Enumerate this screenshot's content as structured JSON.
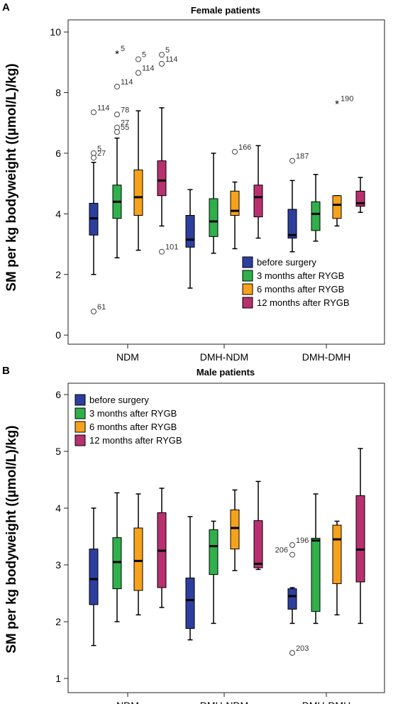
{
  "figure": {
    "panel_a_label": "A",
    "panel_b_label": "B"
  },
  "chart_data": [
    {
      "type": "boxplot",
      "title": "Female patients",
      "ylabel": "SM per kg bodyweight ((µmol/L)/kg)",
      "xlabel": "",
      "ylim": [
        -0.3,
        10.4
      ],
      "yticks": [
        0,
        2,
        4,
        6,
        8,
        10
      ],
      "categories": [
        "NDM",
        "DMH-NDM",
        "DMH-DMH"
      ],
      "grid": false,
      "legend_position": "bottom-right",
      "series": [
        {
          "name": "before surgery",
          "color": "#2d3f9e",
          "boxes": [
            {
              "whisker_low": 2.0,
              "q1": 3.3,
              "median": 3.85,
              "q3": 4.35,
              "whisker_high": 5.7
            },
            {
              "whisker_low": 1.55,
              "q1": 2.9,
              "median": 3.15,
              "q3": 3.95,
              "whisker_high": 4.8
            },
            {
              "whisker_low": 2.75,
              "q1": 3.2,
              "median": 3.3,
              "q3": 4.15,
              "whisker_high": 5.1
            }
          ]
        },
        {
          "name": "3 months after RYGB",
          "color": "#2fb04a",
          "boxes": [
            {
              "whisker_low": 2.55,
              "q1": 3.85,
              "median": 4.4,
              "q3": 4.95,
              "whisker_high": 6.5
            },
            {
              "whisker_low": 2.7,
              "q1": 3.25,
              "median": 3.75,
              "q3": 4.5,
              "whisker_high": 6.0
            },
            {
              "whisker_low": 3.1,
              "q1": 3.45,
              "median": 4.0,
              "q3": 4.4,
              "whisker_high": 5.3
            }
          ]
        },
        {
          "name": "6 months after RYGB",
          "color": "#f7a21b",
          "boxes": [
            {
              "whisker_low": 2.8,
              "q1": 3.95,
              "median": 4.55,
              "q3": 5.45,
              "whisker_high": 7.4
            },
            {
              "whisker_low": 2.85,
              "q1": 3.95,
              "median": 4.1,
              "q3": 4.75,
              "whisker_high": 5.05
            },
            {
              "whisker_low": 3.6,
              "q1": 3.85,
              "median": 4.3,
              "q3": 4.6,
              "whisker_high": 4.6
            }
          ]
        },
        {
          "name": "12 months after RYGB",
          "color": "#b8306f",
          "boxes": [
            {
              "whisker_low": 3.6,
              "q1": 4.6,
              "median": 5.1,
              "q3": 5.75,
              "whisker_high": 7.5
            },
            {
              "whisker_low": 3.2,
              "q1": 3.9,
              "median": 4.55,
              "q3": 4.95,
              "whisker_high": 6.25
            },
            {
              "whisker_low": 4.05,
              "q1": 4.25,
              "median": 4.35,
              "q3": 4.75,
              "whisker_high": 5.2
            }
          ]
        }
      ],
      "outliers": [
        {
          "category": 0,
          "series": 0,
          "y": 7.35,
          "label": "114",
          "marker": "circle"
        },
        {
          "category": 0,
          "series": 0,
          "y": 6.0,
          "label": "5",
          "marker": "circle"
        },
        {
          "category": 0,
          "series": 0,
          "y": 5.85,
          "label": "27",
          "marker": "circle"
        },
        {
          "category": 0,
          "series": 0,
          "y": 0.78,
          "label": "61",
          "marker": "circle"
        },
        {
          "category": 0,
          "series": 1,
          "y": 9.3,
          "label": "5",
          "marker": "star"
        },
        {
          "category": 0,
          "series": 1,
          "y": 8.2,
          "label": "114",
          "marker": "circle"
        },
        {
          "category": 0,
          "series": 1,
          "y": 7.28,
          "label": "78",
          "marker": "circle"
        },
        {
          "category": 0,
          "series": 1,
          "y": 6.85,
          "label": "27",
          "marker": "circle"
        },
        {
          "category": 0,
          "series": 1,
          "y": 6.7,
          "label": "55",
          "marker": "circle"
        },
        {
          "category": 0,
          "series": 2,
          "y": 9.1,
          "label": "5",
          "marker": "circle"
        },
        {
          "category": 0,
          "series": 2,
          "y": 8.65,
          "label": "114",
          "marker": "circle"
        },
        {
          "category": 0,
          "series": 3,
          "y": 9.25,
          "label": "5",
          "marker": "circle"
        },
        {
          "category": 0,
          "series": 3,
          "y": 8.95,
          "label": "114",
          "marker": "circle"
        },
        {
          "category": 0,
          "series": 3,
          "y": 2.75,
          "label": "101",
          "marker": "circle"
        },
        {
          "category": 1,
          "series": 2,
          "y": 6.05,
          "label": "166",
          "marker": "circle"
        },
        {
          "category": 2,
          "series": 0,
          "y": 5.75,
          "label": "187",
          "marker": "circle"
        },
        {
          "category": 2,
          "series": 2,
          "y": 7.65,
          "label": "190",
          "marker": "star"
        }
      ]
    },
    {
      "type": "boxplot",
      "title": "Male patients",
      "ylabel": "SM per kg bodyweight ((µmol/L)/kg)",
      "xlabel": "",
      "ylim": [
        0.75,
        6.2
      ],
      "yticks": [
        1,
        2,
        3,
        4,
        5,
        6
      ],
      "categories": [
        "NDM",
        "DMH-NDM",
        "DMH-DMH"
      ],
      "grid": false,
      "legend_position": "top-left",
      "series": [
        {
          "name": "before surgery",
          "color": "#2d3f9e",
          "boxes": [
            {
              "whisker_low": 1.58,
              "q1": 2.3,
              "median": 2.75,
              "q3": 3.28,
              "whisker_high": 4.0
            },
            {
              "whisker_low": 1.68,
              "q1": 1.88,
              "median": 2.38,
              "q3": 2.77,
              "whisker_high": 3.85
            },
            {
              "whisker_low": 1.97,
              "q1": 2.22,
              "median": 2.45,
              "q3": 2.58,
              "whisker_high": 2.6
            }
          ]
        },
        {
          "name": "3 months after RYGB",
          "color": "#2fb04a",
          "boxes": [
            {
              "whisker_low": 2.0,
              "q1": 2.58,
              "median": 3.05,
              "q3": 3.48,
              "whisker_high": 4.27
            },
            {
              "whisker_low": 1.97,
              "q1": 2.83,
              "median": 3.33,
              "q3": 3.62,
              "whisker_high": 3.77
            },
            {
              "whisker_low": 1.97,
              "q1": 2.18,
              "median": 3.43,
              "q3": 3.47,
              "whisker_high": 4.25
            }
          ]
        },
        {
          "name": "6 months after RYGB",
          "color": "#f7a21b",
          "boxes": [
            {
              "whisker_low": 2.12,
              "q1": 2.55,
              "median": 3.07,
              "q3": 3.65,
              "whisker_high": 4.25
            },
            {
              "whisker_low": 2.9,
              "q1": 3.28,
              "median": 3.65,
              "q3": 3.97,
              "whisker_high": 4.32
            },
            {
              "whisker_low": 2.12,
              "q1": 2.67,
              "median": 3.45,
              "q3": 3.7,
              "whisker_high": 3.77
            }
          ]
        },
        {
          "name": "12 months after RYGB",
          "color": "#b8306f",
          "boxes": [
            {
              "whisker_low": 2.25,
              "q1": 2.6,
              "median": 3.25,
              "q3": 3.92,
              "whisker_high": 4.35
            },
            {
              "whisker_low": 2.92,
              "q1": 2.95,
              "median": 3.02,
              "q3": 3.78,
              "whisker_high": 4.47
            },
            {
              "whisker_low": 1.97,
              "q1": 2.7,
              "median": 3.27,
              "q3": 4.22,
              "whisker_high": 5.05
            }
          ]
        }
      ],
      "outliers": [
        {
          "category": 2,
          "series": 0,
          "y": 3.35,
          "label": "196",
          "marker": "circle"
        },
        {
          "category": 2,
          "series": 0,
          "y": 3.18,
          "label": "206",
          "marker": "circle"
        },
        {
          "category": 2,
          "series": 0,
          "y": 1.45,
          "label": "203",
          "marker": "circle"
        }
      ]
    }
  ]
}
